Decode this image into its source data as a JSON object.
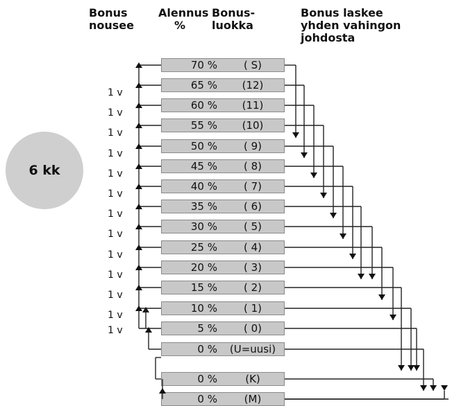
{
  "headers": {
    "bonus_up": "Bonus\nnousee",
    "discount": "Alennus\n%",
    "bonus_class": "Bonus-\nluokka",
    "bonus_down": "Bonus laskee\nyhden vahingon\njohdosta"
  },
  "badge": "6 kk",
  "rows": [
    {
      "pct": "70 %",
      "cls": "( S)"
    },
    {
      "pct": "65 %",
      "cls": "(12)"
    },
    {
      "pct": "60 %",
      "cls": "(11)"
    },
    {
      "pct": "55 %",
      "cls": "(10)"
    },
    {
      "pct": "50 %",
      "cls": "( 9)"
    },
    {
      "pct": "45 %",
      "cls": "( 8)"
    },
    {
      "pct": "40 %",
      "cls": "( 7)"
    },
    {
      "pct": "35 %",
      "cls": "( 6)"
    },
    {
      "pct": "30 %",
      "cls": "( 5)"
    },
    {
      "pct": "25 %",
      "cls": "( 4)"
    },
    {
      "pct": "20 %",
      "cls": "( 3)"
    },
    {
      "pct": "15 %",
      "cls": "( 2)"
    },
    {
      "pct": "10 %",
      "cls": "( 1)"
    },
    {
      "pct": "5 %",
      "cls": "( 0)"
    },
    {
      "pct": "0 %",
      "cls": "(U=uusi)"
    },
    {
      "pct": "0 %",
      "cls": "(K)"
    },
    {
      "pct": "0 %",
      "cls": "(M)"
    }
  ],
  "year_labels": [
    "1 v",
    "1 v",
    "1 v",
    "1 v",
    "1 v",
    "1 v",
    "1 v",
    "1 v",
    "1 v",
    "1 v",
    "1 v",
    "1 v",
    "1 v"
  ]
}
